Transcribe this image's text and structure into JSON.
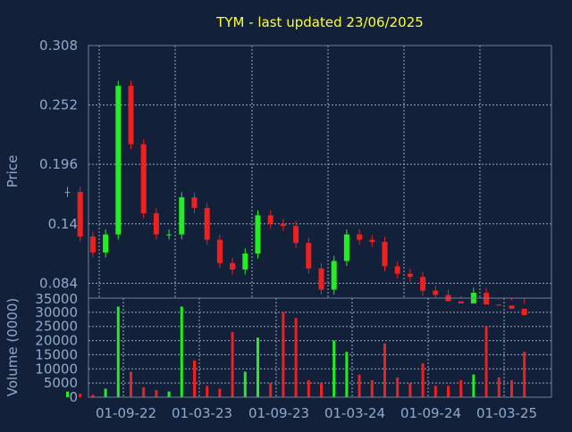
{
  "colors": {
    "background": "#13203a",
    "title": "#ffff33",
    "axis_text": "#8faacc",
    "axis_line": "#6f7f9a",
    "grid": "#9aa6b5",
    "up": "#22ee22",
    "down": "#ee2020"
  },
  "chart_data": [
    {
      "type": "candlestick",
      "title": "TYM - last updated 23/06/2025",
      "ylabel": "Price",
      "ylim": [
        0.07,
        0.308
      ],
      "y_ticks": [
        0.308,
        0.252,
        0.196,
        0.14,
        0.084
      ],
      "x_ticks": [
        "01-09-22",
        "01-03-23",
        "01-09-23",
        "01-03-24",
        "01-09-24",
        "01-03-25"
      ],
      "grid": true,
      "x": [
        "2022-06",
        "2022-07",
        "2022-08",
        "2022-09",
        "2022-10",
        "2022-11",
        "2022-12",
        "2023-01",
        "2023-02",
        "2023-03",
        "2023-04",
        "2023-05",
        "2023-06",
        "2023-07",
        "2023-08",
        "2023-09",
        "2023-10",
        "2023-11",
        "2023-12",
        "2024-01",
        "2024-02",
        "2024-03",
        "2024-04",
        "2024-05",
        "2024-06",
        "2024-07",
        "2024-08",
        "2024-09",
        "2024-10",
        "2024-11",
        "2024-12",
        "2025-01",
        "2025-02",
        "2025-03",
        "2025-04",
        "2025-05",
        "2025-06"
      ],
      "values": [
        0.17,
        0.128,
        0.113,
        0.13,
        0.27,
        0.215,
        0.15,
        0.13,
        0.13,
        0.165,
        0.155,
        0.125,
        0.103,
        0.097,
        0.112,
        0.148,
        0.14,
        0.138,
        0.122,
        0.098,
        0.078,
        0.105,
        0.13,
        0.125,
        0.123,
        0.1,
        0.093,
        0.09,
        0.077,
        0.073,
        0.067,
        0.065,
        0.075,
        0.064,
        0.063,
        0.06,
        0.054
      ]
    },
    {
      "type": "bar",
      "ylabel": "Volume (0000)",
      "ylim": [
        0,
        35000
      ],
      "y_ticks": [
        35000,
        30000,
        25000,
        20000,
        15000,
        10000,
        5000,
        0
      ],
      "x": [
        "2022-06",
        "2022-07",
        "2022-08",
        "2022-09",
        "2022-10",
        "2022-11",
        "2022-12",
        "2023-01",
        "2023-02",
        "2023-03",
        "2023-04",
        "2023-05",
        "2023-06",
        "2023-07",
        "2023-08",
        "2023-09",
        "2023-10",
        "2023-11",
        "2023-12",
        "2024-01",
        "2024-02",
        "2024-03",
        "2024-04",
        "2024-05",
        "2024-06",
        "2024-07",
        "2024-08",
        "2024-09",
        "2024-10",
        "2024-11",
        "2024-12",
        "2025-01",
        "2025-02",
        "2025-03",
        "2025-04",
        "2025-05",
        "2025-06"
      ],
      "values": [
        2000,
        1200,
        900,
        3000,
        32000,
        9000,
        3500,
        2500,
        2000,
        32000,
        13000,
        4000,
        3000,
        23000,
        9000,
        21000,
        5000,
        30000,
        28000,
        6000,
        5000,
        20000,
        16000,
        8000,
        6000,
        19000,
        7000,
        5000,
        12000,
        4000,
        4000,
        6000,
        8000,
        25000,
        7000,
        6000,
        16000
      ]
    }
  ]
}
